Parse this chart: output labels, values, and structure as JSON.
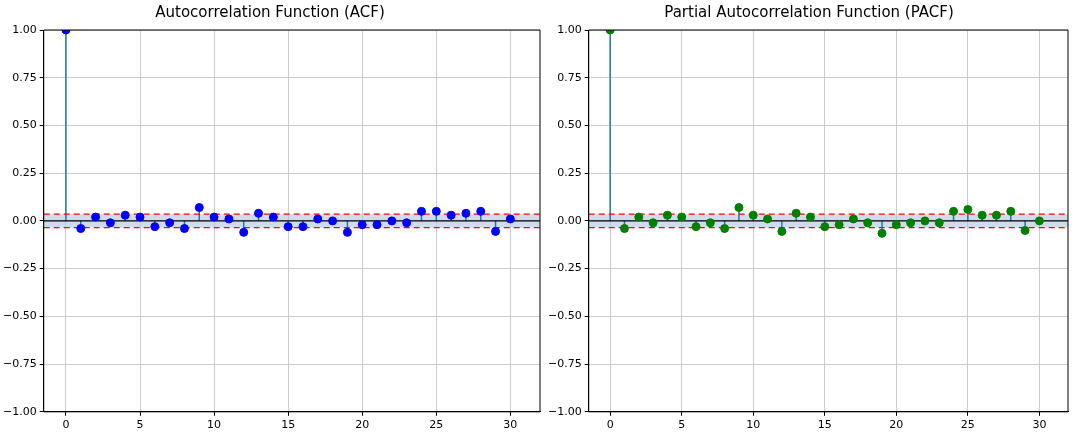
{
  "chart_data": [
    {
      "type": "lollipop",
      "title": "Autocorrelation Function (ACF)",
      "x": [
        0,
        1,
        2,
        3,
        4,
        5,
        6,
        7,
        8,
        9,
        10,
        11,
        12,
        13,
        14,
        15,
        16,
        17,
        18,
        19,
        20,
        21,
        22,
        23,
        24,
        25,
        26,
        27,
        28,
        29,
        30
      ],
      "series": [
        {
          "color": "#0000ff",
          "values": [
            1,
            -0.04,
            0.02,
            -0.01,
            0.03,
            0.02,
            -0.03,
            -0.01,
            -0.04,
            0.07,
            0.02,
            0.01,
            -0.06,
            0.04,
            0.02,
            -0.03,
            -0.03,
            0.01,
            0,
            -0.06,
            -0.02,
            -0.02,
            0,
            -0.01,
            0.05,
            0.05,
            0.03,
            0.04,
            0.05,
            -0.055,
            0.01
          ]
        }
      ],
      "xlim": [
        -1.5,
        32
      ],
      "xticks": [
        0,
        5,
        10,
        15,
        20,
        25,
        30
      ],
      "ylim": [
        -1,
        1
      ],
      "yticks": [
        {
          "value": -1,
          "label": "−1.00"
        },
        {
          "value": -0.75,
          "label": "−0.75"
        },
        {
          "value": -0.5,
          "label": "−0.50"
        },
        {
          "value": -0.25,
          "label": "−0.25"
        },
        {
          "value": 0,
          "label": "0.00"
        },
        {
          "value": 0.25,
          "label": "0.25"
        },
        {
          "value": 0.5,
          "label": "0.50"
        },
        {
          "value": 0.75,
          "label": "0.75"
        },
        {
          "value": 1,
          "label": "1.00"
        }
      ],
      "bands": [
        {
          "axis": "y",
          "from": -0.035,
          "to": 0.035,
          "color": "#b0c4de"
        }
      ],
      "ref_lines": [
        {
          "axis": "y",
          "value": 0.035,
          "color": "#ff0000",
          "line_style": "dashed"
        },
        {
          "axis": "y",
          "value": -0.035,
          "color": "#ff0000",
          "line_style": "dashed"
        },
        {
          "axis": "y",
          "value": 0,
          "color": "#000000",
          "line_style": "solid"
        }
      ],
      "grid": true,
      "marker": "circle"
    },
    {
      "type": "lollipop",
      "title": "Partial Autocorrelation Function (PACF)",
      "x": [
        0,
        1,
        2,
        3,
        4,
        5,
        6,
        7,
        8,
        9,
        10,
        11,
        12,
        13,
        14,
        15,
        16,
        17,
        18,
        19,
        20,
        21,
        22,
        23,
        24,
        25,
        26,
        27,
        28,
        29,
        30
      ],
      "series": [
        {
          "color": "#008000",
          "values": [
            1,
            -0.04,
            0.02,
            -0.01,
            0.03,
            0.02,
            -0.03,
            -0.01,
            -0.04,
            0.07,
            0.03,
            0.01,
            -0.055,
            0.04,
            0.02,
            -0.03,
            -0.02,
            0.01,
            -0.01,
            -0.065,
            -0.02,
            -0.01,
            0,
            -0.01,
            0.05,
            0.06,
            0.03,
            0.03,
            0.05,
            -0.05,
            0
          ]
        }
      ],
      "xlim": [
        -1.5,
        32
      ],
      "xticks": [
        0,
        5,
        10,
        15,
        20,
        25,
        30
      ],
      "ylim": [
        -1,
        1
      ],
      "yticks": [
        {
          "value": -1,
          "label": "−1.00"
        },
        {
          "value": -0.75,
          "label": "−0.75"
        },
        {
          "value": -0.5,
          "label": "−0.50"
        },
        {
          "value": -0.25,
          "label": "−0.25"
        },
        {
          "value": 0,
          "label": "0.00"
        },
        {
          "value": 0.25,
          "label": "0.25"
        },
        {
          "value": 0.5,
          "label": "0.50"
        },
        {
          "value": 0.75,
          "label": "0.75"
        },
        {
          "value": 1,
          "label": "1.00"
        }
      ],
      "bands": [
        {
          "axis": "y",
          "from": -0.035,
          "to": 0.035,
          "color": "#b0c4de"
        }
      ],
      "ref_lines": [
        {
          "axis": "y",
          "value": 0.035,
          "color": "#ff0000",
          "line_style": "dashed"
        },
        {
          "axis": "y",
          "value": -0.035,
          "color": "#ff0000",
          "line_style": "dashed"
        },
        {
          "axis": "y",
          "value": 0,
          "color": "#000000",
          "line_style": "solid"
        }
      ],
      "grid": true,
      "marker": "circle"
    }
  ]
}
